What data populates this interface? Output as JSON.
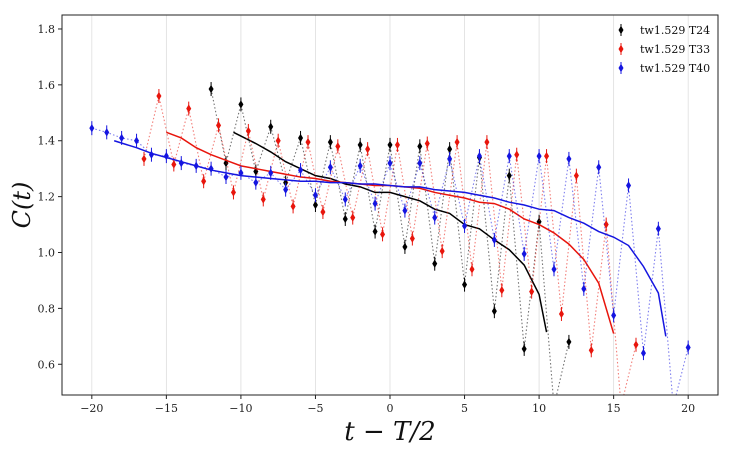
{
  "chart_data": {
    "type": "scatter",
    "xlabel": "t − T/2",
    "ylabel": "C(t)",
    "xlim": [
      -22,
      22
    ],
    "ylim": [
      0.49,
      1.85
    ],
    "xticks": [
      -20,
      -15,
      -10,
      -5,
      0,
      5,
      10,
      15,
      20
    ],
    "yticks": [
      0.6,
      0.8,
      1.0,
      1.2,
      1.4,
      1.6,
      1.8
    ],
    "grid": "vertical",
    "legend_position": "top-right",
    "series": [
      {
        "name": "tw1.529 T24",
        "color": "#000000",
        "points": [
          {
            "x": -12,
            "y": 1.585
          },
          {
            "x": -11,
            "y": 1.32
          },
          {
            "x": -10,
            "y": 1.53
          },
          {
            "x": -9,
            "y": 1.29
          },
          {
            "x": -8,
            "y": 1.45
          },
          {
            "x": -7,
            "y": 1.25
          },
          {
            "x": -6,
            "y": 1.41
          },
          {
            "x": -5,
            "y": 1.17
          },
          {
            "x": -4,
            "y": 1.395
          },
          {
            "x": -3,
            "y": 1.12
          },
          {
            "x": -2,
            "y": 1.385
          },
          {
            "x": -1,
            "y": 1.075
          },
          {
            "x": 0,
            "y": 1.385
          },
          {
            "x": 1,
            "y": 1.02
          },
          {
            "x": 2,
            "y": 1.38
          },
          {
            "x": 3,
            "y": 0.96
          },
          {
            "x": 4,
            "y": 1.37
          },
          {
            "x": 5,
            "y": 0.885
          },
          {
            "x": 6,
            "y": 1.34
          },
          {
            "x": 7,
            "y": 0.79
          },
          {
            "x": 8,
            "y": 1.275
          },
          {
            "x": 9,
            "y": 0.655
          },
          {
            "x": 10,
            "y": 1.11
          },
          {
            "x": 11,
            "y": 0.45
          },
          {
            "x": 12,
            "y": 0.68
          }
        ],
        "smooth": [
          {
            "x": -10.5,
            "y": 1.43
          },
          {
            "x": -9,
            "y": 1.39
          },
          {
            "x": -8,
            "y": 1.36
          },
          {
            "x": -7,
            "y": 1.325
          },
          {
            "x": -6,
            "y": 1.3
          },
          {
            "x": -5,
            "y": 1.275
          },
          {
            "x": -4,
            "y": 1.265
          },
          {
            "x": -3,
            "y": 1.245
          },
          {
            "x": -2,
            "y": 1.235
          },
          {
            "x": -1,
            "y": 1.215
          },
          {
            "x": 0,
            "y": 1.215
          },
          {
            "x": 1,
            "y": 1.2
          },
          {
            "x": 2,
            "y": 1.185
          },
          {
            "x": 3,
            "y": 1.155
          },
          {
            "x": 4,
            "y": 1.14
          },
          {
            "x": 5,
            "y": 1.1
          },
          {
            "x": 6,
            "y": 1.085
          },
          {
            "x": 7,
            "y": 1.045
          },
          {
            "x": 8,
            "y": 1.01
          },
          {
            "x": 9,
            "y": 0.955
          },
          {
            "x": 10,
            "y": 0.85
          },
          {
            "x": 10.5,
            "y": 0.715
          }
        ]
      },
      {
        "name": "tw1.529 T33",
        "color": "#e8150c",
        "points": [
          {
            "x": -16.5,
            "y": 1.335
          },
          {
            "x": -15.5,
            "y": 1.56
          },
          {
            "x": -14.5,
            "y": 1.315
          },
          {
            "x": -13.5,
            "y": 1.515
          },
          {
            "x": -12.5,
            "y": 1.255
          },
          {
            "x": -11.5,
            "y": 1.455
          },
          {
            "x": -10.5,
            "y": 1.215
          },
          {
            "x": -9.5,
            "y": 1.435
          },
          {
            "x": -8.5,
            "y": 1.19
          },
          {
            "x": -7.5,
            "y": 1.4
          },
          {
            "x": -6.5,
            "y": 1.165
          },
          {
            "x": -5.5,
            "y": 1.395
          },
          {
            "x": -4.5,
            "y": 1.145
          },
          {
            "x": -3.5,
            "y": 1.38
          },
          {
            "x": -2.5,
            "y": 1.125
          },
          {
            "x": -1.5,
            "y": 1.37
          },
          {
            "x": -0.5,
            "y": 1.065
          },
          {
            "x": 0.5,
            "y": 1.385
          },
          {
            "x": 1.5,
            "y": 1.05
          },
          {
            "x": 2.5,
            "y": 1.39
          },
          {
            "x": 3.5,
            "y": 1.005
          },
          {
            "x": 4.5,
            "y": 1.395
          },
          {
            "x": 5.5,
            "y": 0.94
          },
          {
            "x": 6.5,
            "y": 1.395
          },
          {
            "x": 7.5,
            "y": 0.865
          },
          {
            "x": 8.5,
            "y": 1.35
          },
          {
            "x": 9.5,
            "y": 0.86
          },
          {
            "x": 10.5,
            "y": 1.345
          },
          {
            "x": 11.5,
            "y": 0.78
          },
          {
            "x": 12.5,
            "y": 1.275
          },
          {
            "x": 13.5,
            "y": 0.65
          },
          {
            "x": 14.5,
            "y": 1.1
          },
          {
            "x": 15.5,
            "y": 0.45
          },
          {
            "x": 16.5,
            "y": 0.67
          }
        ],
        "smooth": [
          {
            "x": -15,
            "y": 1.43
          },
          {
            "x": -14,
            "y": 1.41
          },
          {
            "x": -13,
            "y": 1.375
          },
          {
            "x": -12,
            "y": 1.35
          },
          {
            "x": -11,
            "y": 1.33
          },
          {
            "x": -10,
            "y": 1.31
          },
          {
            "x": -9,
            "y": 1.3
          },
          {
            "x": -8,
            "y": 1.29
          },
          {
            "x": -7,
            "y": 1.28
          },
          {
            "x": -6,
            "y": 1.27
          },
          {
            "x": -5,
            "y": 1.265
          },
          {
            "x": -4,
            "y": 1.255
          },
          {
            "x": -3,
            "y": 1.25
          },
          {
            "x": -2,
            "y": 1.245
          },
          {
            "x": -1,
            "y": 1.24
          },
          {
            "x": 0,
            "y": 1.24
          },
          {
            "x": 1,
            "y": 1.235
          },
          {
            "x": 2,
            "y": 1.23
          },
          {
            "x": 3,
            "y": 1.215
          },
          {
            "x": 4,
            "y": 1.205
          },
          {
            "x": 5,
            "y": 1.195
          },
          {
            "x": 6,
            "y": 1.18
          },
          {
            "x": 7,
            "y": 1.175
          },
          {
            "x": 8,
            "y": 1.155
          },
          {
            "x": 9,
            "y": 1.12
          },
          {
            "x": 10,
            "y": 1.1
          },
          {
            "x": 11,
            "y": 1.07
          },
          {
            "x": 12,
            "y": 1.03
          },
          {
            "x": 13,
            "y": 0.975
          },
          {
            "x": 14,
            "y": 0.89
          },
          {
            "x": 15,
            "y": 0.71
          }
        ]
      },
      {
        "name": "tw1.529 T40",
        "color": "#1515e0",
        "points": [
          {
            "x": -20,
            "y": 1.445
          },
          {
            "x": -19,
            "y": 1.43
          },
          {
            "x": -18,
            "y": 1.41
          },
          {
            "x": -17,
            "y": 1.4
          },
          {
            "x": -16,
            "y": 1.35
          },
          {
            "x": -15,
            "y": 1.345
          },
          {
            "x": -14,
            "y": 1.32
          },
          {
            "x": -13,
            "y": 1.31
          },
          {
            "x": -12,
            "y": 1.3
          },
          {
            "x": -11,
            "y": 1.27
          },
          {
            "x": -10,
            "y": 1.285
          },
          {
            "x": -9,
            "y": 1.25
          },
          {
            "x": -8,
            "y": 1.285
          },
          {
            "x": -7,
            "y": 1.225
          },
          {
            "x": -6,
            "y": 1.295
          },
          {
            "x": -5,
            "y": 1.205
          },
          {
            "x": -4,
            "y": 1.305
          },
          {
            "x": -3,
            "y": 1.19
          },
          {
            "x": -2,
            "y": 1.31
          },
          {
            "x": -1,
            "y": 1.175
          },
          {
            "x": 0,
            "y": 1.32
          },
          {
            "x": 1,
            "y": 1.15
          },
          {
            "x": 2,
            "y": 1.32
          },
          {
            "x": 3,
            "y": 1.125
          },
          {
            "x": 4,
            "y": 1.335
          },
          {
            "x": 5,
            "y": 1.095
          },
          {
            "x": 6,
            "y": 1.345
          },
          {
            "x": 7,
            "y": 1.045
          },
          {
            "x": 8,
            "y": 1.345
          },
          {
            "x": 9,
            "y": 0.995
          },
          {
            "x": 10,
            "y": 1.345
          },
          {
            "x": 11,
            "y": 0.94
          },
          {
            "x": 12,
            "y": 1.335
          },
          {
            "x": 13,
            "y": 0.87
          },
          {
            "x": 14,
            "y": 1.305
          },
          {
            "x": 15,
            "y": 0.775
          },
          {
            "x": 16,
            "y": 1.24
          },
          {
            "x": 17,
            "y": 0.64
          },
          {
            "x": 18,
            "y": 1.085
          },
          {
            "x": 19,
            "y": 0.45
          },
          {
            "x": 20,
            "y": 0.66
          }
        ],
        "smooth": [
          {
            "x": -18.5,
            "y": 1.4
          },
          {
            "x": -17,
            "y": 1.375
          },
          {
            "x": -16,
            "y": 1.355
          },
          {
            "x": -15,
            "y": 1.34
          },
          {
            "x": -14,
            "y": 1.325
          },
          {
            "x": -13,
            "y": 1.31
          },
          {
            "x": -12,
            "y": 1.295
          },
          {
            "x": -11,
            "y": 1.285
          },
          {
            "x": -10,
            "y": 1.275
          },
          {
            "x": -9,
            "y": 1.27
          },
          {
            "x": -8,
            "y": 1.265
          },
          {
            "x": -7,
            "y": 1.26
          },
          {
            "x": -6,
            "y": 1.255
          },
          {
            "x": -5,
            "y": 1.255
          },
          {
            "x": -4,
            "y": 1.25
          },
          {
            "x": -3,
            "y": 1.25
          },
          {
            "x": -2,
            "y": 1.245
          },
          {
            "x": -1,
            "y": 1.245
          },
          {
            "x": 0,
            "y": 1.24
          },
          {
            "x": 1,
            "y": 1.235
          },
          {
            "x": 2,
            "y": 1.235
          },
          {
            "x": 3,
            "y": 1.225
          },
          {
            "x": 4,
            "y": 1.22
          },
          {
            "x": 5,
            "y": 1.215
          },
          {
            "x": 6,
            "y": 1.205
          },
          {
            "x": 7,
            "y": 1.195
          },
          {
            "x": 8,
            "y": 1.18
          },
          {
            "x": 9,
            "y": 1.17
          },
          {
            "x": 10,
            "y": 1.155
          },
          {
            "x": 11,
            "y": 1.15
          },
          {
            "x": 12,
            "y": 1.125
          },
          {
            "x": 13,
            "y": 1.105
          },
          {
            "x": 14,
            "y": 1.075
          },
          {
            "x": 15,
            "y": 1.055
          },
          {
            "x": 16,
            "y": 1.025
          },
          {
            "x": 17,
            "y": 0.95
          },
          {
            "x": 18,
            "y": 0.855
          },
          {
            "x": 18.5,
            "y": 0.7
          }
        ]
      }
    ]
  }
}
